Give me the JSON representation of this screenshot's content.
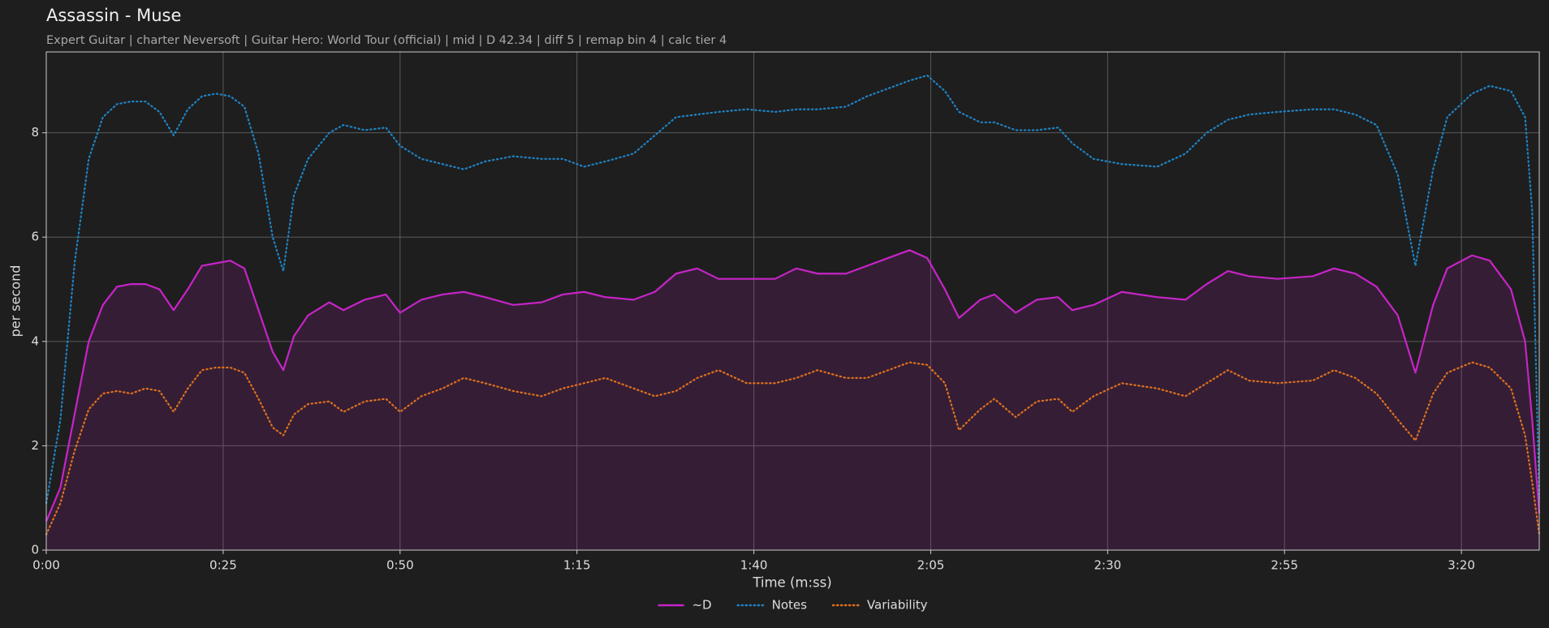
{
  "chart_data": {
    "type": "line",
    "title": "Assassin - Muse",
    "subtitle": "Expert Guitar  |  charter Neversoft  |  Guitar Hero: World Tour (official)  |  mid  |  D 42.34  |  diff 5  |  remap bin 4  |  calc tier 4",
    "x_label": "Time (m:ss)",
    "y_label": "per second",
    "x": [
      0,
      2,
      4,
      6,
      8,
      10,
      12,
      14,
      16,
      18,
      20,
      22,
      24,
      26,
      28,
      30,
      32,
      33.5,
      35,
      37,
      40,
      42,
      45,
      48,
      50,
      53,
      56,
      59,
      62,
      66,
      70,
      73,
      76,
      79,
      83,
      86,
      89,
      92,
      95,
      99,
      103,
      106,
      109,
      113,
      116,
      119,
      122,
      124.5,
      127,
      129,
      132,
      134,
      137,
      140,
      143,
      145,
      148,
      152,
      157,
      161,
      164,
      167,
      170,
      174,
      179,
      182,
      185,
      188,
      191,
      193.5,
      196,
      198,
      201.5,
      204,
      207,
      209,
      210,
      211
    ],
    "series": [
      {
        "name": "~D",
        "color": "#c724c7",
        "style": "solid",
        "fill": true,
        "values": [
          0.55,
          1.2,
          2.6,
          4.0,
          4.7,
          5.05,
          5.1,
          5.1,
          5.0,
          4.6,
          5.0,
          5.45,
          5.5,
          5.55,
          5.4,
          4.6,
          3.8,
          3.45,
          4.1,
          4.5,
          4.75,
          4.6,
          4.8,
          4.9,
          4.55,
          4.8,
          4.9,
          4.95,
          4.85,
          4.7,
          4.75,
          4.9,
          4.95,
          4.85,
          4.8,
          4.95,
          5.3,
          5.4,
          5.2,
          5.2,
          5.2,
          5.4,
          5.3,
          5.3,
          5.45,
          5.6,
          5.75,
          5.6,
          5.0,
          4.45,
          4.8,
          4.9,
          4.55,
          4.8,
          4.85,
          4.6,
          4.7,
          4.95,
          4.85,
          4.8,
          5.1,
          5.35,
          5.25,
          5.2,
          5.25,
          5.4,
          5.3,
          5.05,
          4.5,
          3.4,
          4.7,
          5.4,
          5.65,
          5.55,
          5.0,
          4.0,
          2.5,
          0.7
        ]
      },
      {
        "name": "Notes",
        "color": "#1f83c4",
        "style": "dotted",
        "values": [
          0.9,
          2.5,
          5.5,
          7.5,
          8.3,
          8.55,
          8.6,
          8.6,
          8.4,
          7.95,
          8.45,
          8.7,
          8.75,
          8.7,
          8.5,
          7.6,
          6.0,
          5.35,
          6.8,
          7.5,
          8.0,
          8.15,
          8.05,
          8.1,
          7.75,
          7.5,
          7.4,
          7.3,
          7.45,
          7.55,
          7.5,
          7.5,
          7.35,
          7.45,
          7.6,
          7.95,
          8.3,
          8.35,
          8.4,
          8.45,
          8.4,
          8.45,
          8.45,
          8.5,
          8.7,
          8.85,
          9.0,
          9.1,
          8.8,
          8.4,
          8.2,
          8.2,
          8.05,
          8.05,
          8.1,
          7.8,
          7.5,
          7.4,
          7.35,
          7.6,
          8.0,
          8.25,
          8.35,
          8.4,
          8.45,
          8.45,
          8.35,
          8.15,
          7.2,
          5.45,
          7.3,
          8.3,
          8.75,
          8.9,
          8.8,
          8.3,
          6.5,
          1.0
        ]
      },
      {
        "name": "Variability",
        "color": "#e0701e",
        "style": "dotted",
        "values": [
          0.3,
          0.9,
          1.9,
          2.7,
          3.0,
          3.05,
          3.0,
          3.1,
          3.05,
          2.65,
          3.1,
          3.45,
          3.5,
          3.5,
          3.4,
          2.9,
          2.35,
          2.2,
          2.6,
          2.8,
          2.85,
          2.65,
          2.85,
          2.9,
          2.65,
          2.95,
          3.1,
          3.3,
          3.2,
          3.05,
          2.95,
          3.1,
          3.2,
          3.3,
          3.1,
          2.95,
          3.05,
          3.3,
          3.45,
          3.2,
          3.2,
          3.3,
          3.45,
          3.3,
          3.3,
          3.45,
          3.6,
          3.55,
          3.2,
          2.3,
          2.7,
          2.9,
          2.55,
          2.85,
          2.9,
          2.65,
          2.95,
          3.2,
          3.1,
          2.95,
          3.2,
          3.45,
          3.25,
          3.2,
          3.25,
          3.45,
          3.3,
          3.0,
          2.5,
          2.1,
          3.0,
          3.4,
          3.6,
          3.5,
          3.1,
          2.2,
          1.3,
          0.3
        ]
      }
    ],
    "xlim": [
      0,
      211
    ],
    "xticks": [
      {
        "value": 0,
        "label": "0:00"
      },
      {
        "value": 25,
        "label": "0:25"
      },
      {
        "value": 50,
        "label": "0:50"
      },
      {
        "value": 75,
        "label": "1:15"
      },
      {
        "value": 100,
        "label": "1:40"
      },
      {
        "value": 125,
        "label": "2:05"
      },
      {
        "value": 150,
        "label": "2:30"
      },
      {
        "value": 175,
        "label": "2:55"
      },
      {
        "value": 200,
        "label": "3:20"
      }
    ],
    "ylim": [
      0,
      9.55
    ],
    "yticks": [
      0,
      2,
      4,
      6,
      8
    ],
    "grid": true,
    "legend": "bottom"
  }
}
